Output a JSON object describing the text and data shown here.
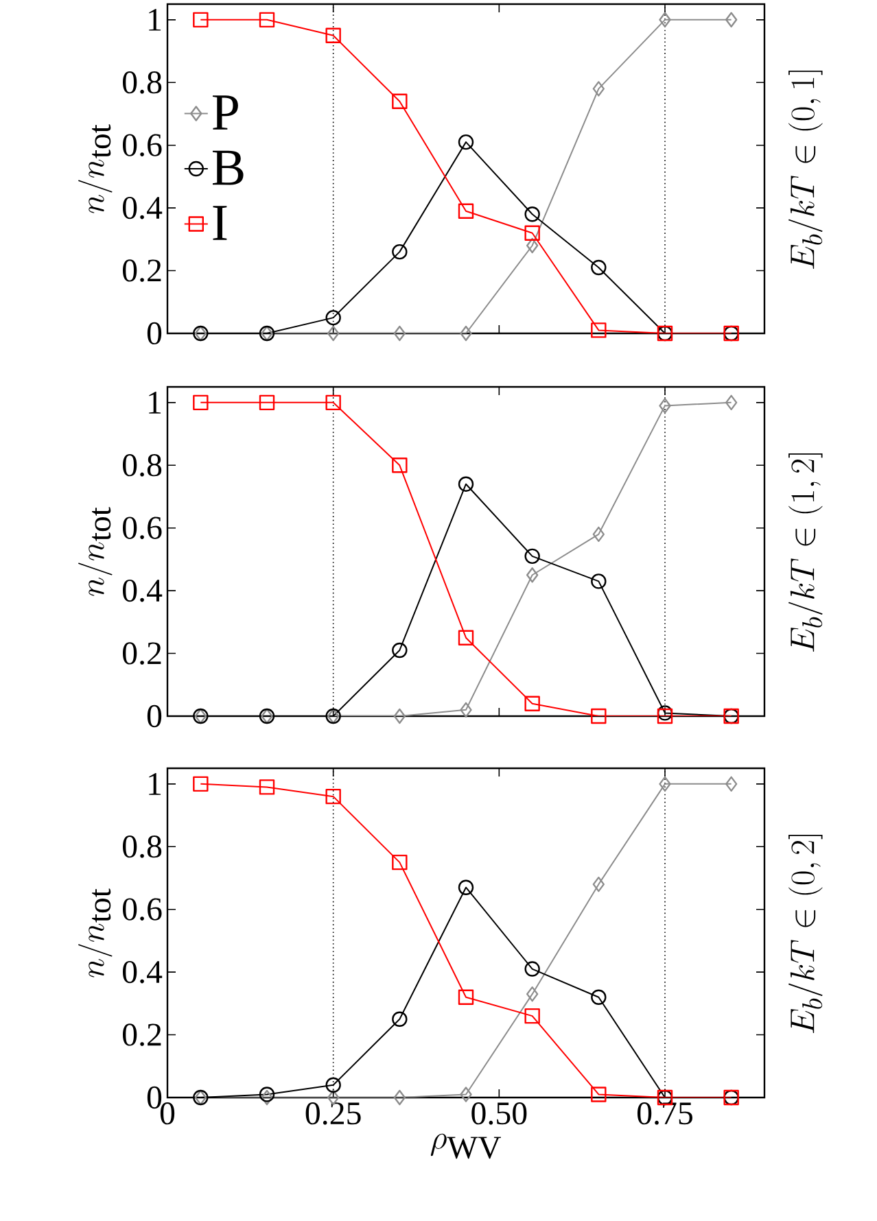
{
  "chart_data": [
    {
      "type": "line",
      "ylabel": "n/n_{\\mathrm{tot}}",
      "y2label": "E_b/kT \\in (0,1]",
      "x": [
        0.05,
        0.15,
        0.25,
        0.35,
        0.45,
        0.55,
        0.65,
        0.75,
        0.85
      ],
      "xlim": [
        0,
        0.9
      ],
      "xticks": [
        {
          "value": 0,
          "label": null
        },
        {
          "value": 0.25,
          "label": null
        },
        {
          "value": 0.5,
          "label": null
        },
        {
          "value": 0.75,
          "label": null
        }
      ],
      "ylim": [
        0,
        1.05
      ],
      "yticks": [
        0,
        0.2,
        0.4,
        0.6,
        0.8,
        1
      ],
      "tick_labels": "y",
      "legend": "left",
      "grid": false,
      "line_style": "solid",
      "ref_lines": [
        {
          "axis": "x",
          "value": 0.25,
          "color": "#000000",
          "line_style": "dotted"
        },
        {
          "axis": "x",
          "value": 0.75,
          "color": "#000000",
          "line_style": "dotted"
        }
      ],
      "series": [
        {
          "name": "P",
          "color": "#8c8c8c",
          "marker": "diamond",
          "values": [
            0,
            0,
            0,
            0,
            0,
            0.28,
            0.78,
            1,
            1
          ]
        },
        {
          "name": "B",
          "color": "#000000",
          "marker": "circle",
          "values": [
            0,
            0,
            0.05,
            0.26,
            0.61,
            0.38,
            0.21,
            0,
            0
          ]
        },
        {
          "name": "I",
          "color": "#ff0000",
          "marker": "square",
          "values": [
            1,
            1,
            0.95,
            0.74,
            0.39,
            0.32,
            0.01,
            0,
            0
          ]
        }
      ]
    },
    {
      "type": "line",
      "ylabel": "n/n_{\\mathrm{tot}}",
      "y2label": "E_b/kT \\in (1,2]",
      "x": [
        0.05,
        0.15,
        0.25,
        0.35,
        0.45,
        0.55,
        0.65,
        0.75,
        0.85
      ],
      "xlim": [
        0,
        0.9
      ],
      "xticks": [
        {
          "value": 0,
          "label": null
        },
        {
          "value": 0.25,
          "label": null
        },
        {
          "value": 0.5,
          "label": null
        },
        {
          "value": 0.75,
          "label": null
        }
      ],
      "ylim": [
        0,
        1.05
      ],
      "yticks": [
        0,
        0.2,
        0.4,
        0.6,
        0.8,
        1
      ],
      "tick_labels": "y",
      "grid": false,
      "line_style": "solid",
      "ref_lines": [
        {
          "axis": "x",
          "value": 0.25,
          "color": "#000000",
          "line_style": "dotted"
        },
        {
          "axis": "x",
          "value": 0.75,
          "color": "#000000",
          "line_style": "dotted"
        }
      ],
      "series": [
        {
          "color": "#8c8c8c",
          "marker": "diamond",
          "values": [
            0,
            0,
            0,
            0,
            0.02,
            0.45,
            0.58,
            0.99,
            1
          ]
        },
        {
          "color": "#000000",
          "marker": "circle",
          "values": [
            0,
            0,
            0,
            0.21,
            0.74,
            0.51,
            0.43,
            0.01,
            0
          ]
        },
        {
          "color": "#ff0000",
          "marker": "square",
          "values": [
            1,
            1,
            1,
            0.8,
            0.25,
            0.04,
            0,
            0,
            0
          ]
        }
      ]
    },
    {
      "type": "line",
      "xlabel": "\\rho_{\\mathrm{WV}}",
      "ylabel": "n/n_{\\mathrm{tot}}",
      "y2label": "E_b/kT \\in (0,2]",
      "x": [
        0.05,
        0.15,
        0.25,
        0.35,
        0.45,
        0.55,
        0.65,
        0.75,
        0.85
      ],
      "xlim": [
        0,
        0.9
      ],
      "xticks": [
        0,
        0.25,
        {
          "value": 0.5,
          "label": "0.50"
        },
        0.75
      ],
      "ylim": [
        0,
        1.05
      ],
      "yticks": [
        0,
        0.2,
        0.4,
        0.6,
        0.8,
        1
      ],
      "grid": false,
      "line_style": "solid",
      "ref_lines": [
        {
          "axis": "x",
          "value": 0.25,
          "color": "#000000",
          "line_style": "dotted"
        },
        {
          "axis": "x",
          "value": 0.75,
          "color": "#000000",
          "line_style": "dotted"
        }
      ],
      "series": [
        {
          "color": "#8c8c8c",
          "marker": "diamond",
          "values": [
            0,
            0,
            0,
            0,
            0.01,
            0.33,
            0.68,
            1,
            1
          ]
        },
        {
          "color": "#000000",
          "marker": "circle",
          "values": [
            0,
            0.01,
            0.04,
            0.25,
            0.67,
            0.41,
            0.32,
            0,
            0
          ]
        },
        {
          "color": "#ff0000",
          "marker": "square",
          "values": [
            1,
            0.99,
            0.96,
            0.75,
            0.32,
            0.26,
            0.01,
            0,
            0
          ]
        }
      ]
    }
  ]
}
